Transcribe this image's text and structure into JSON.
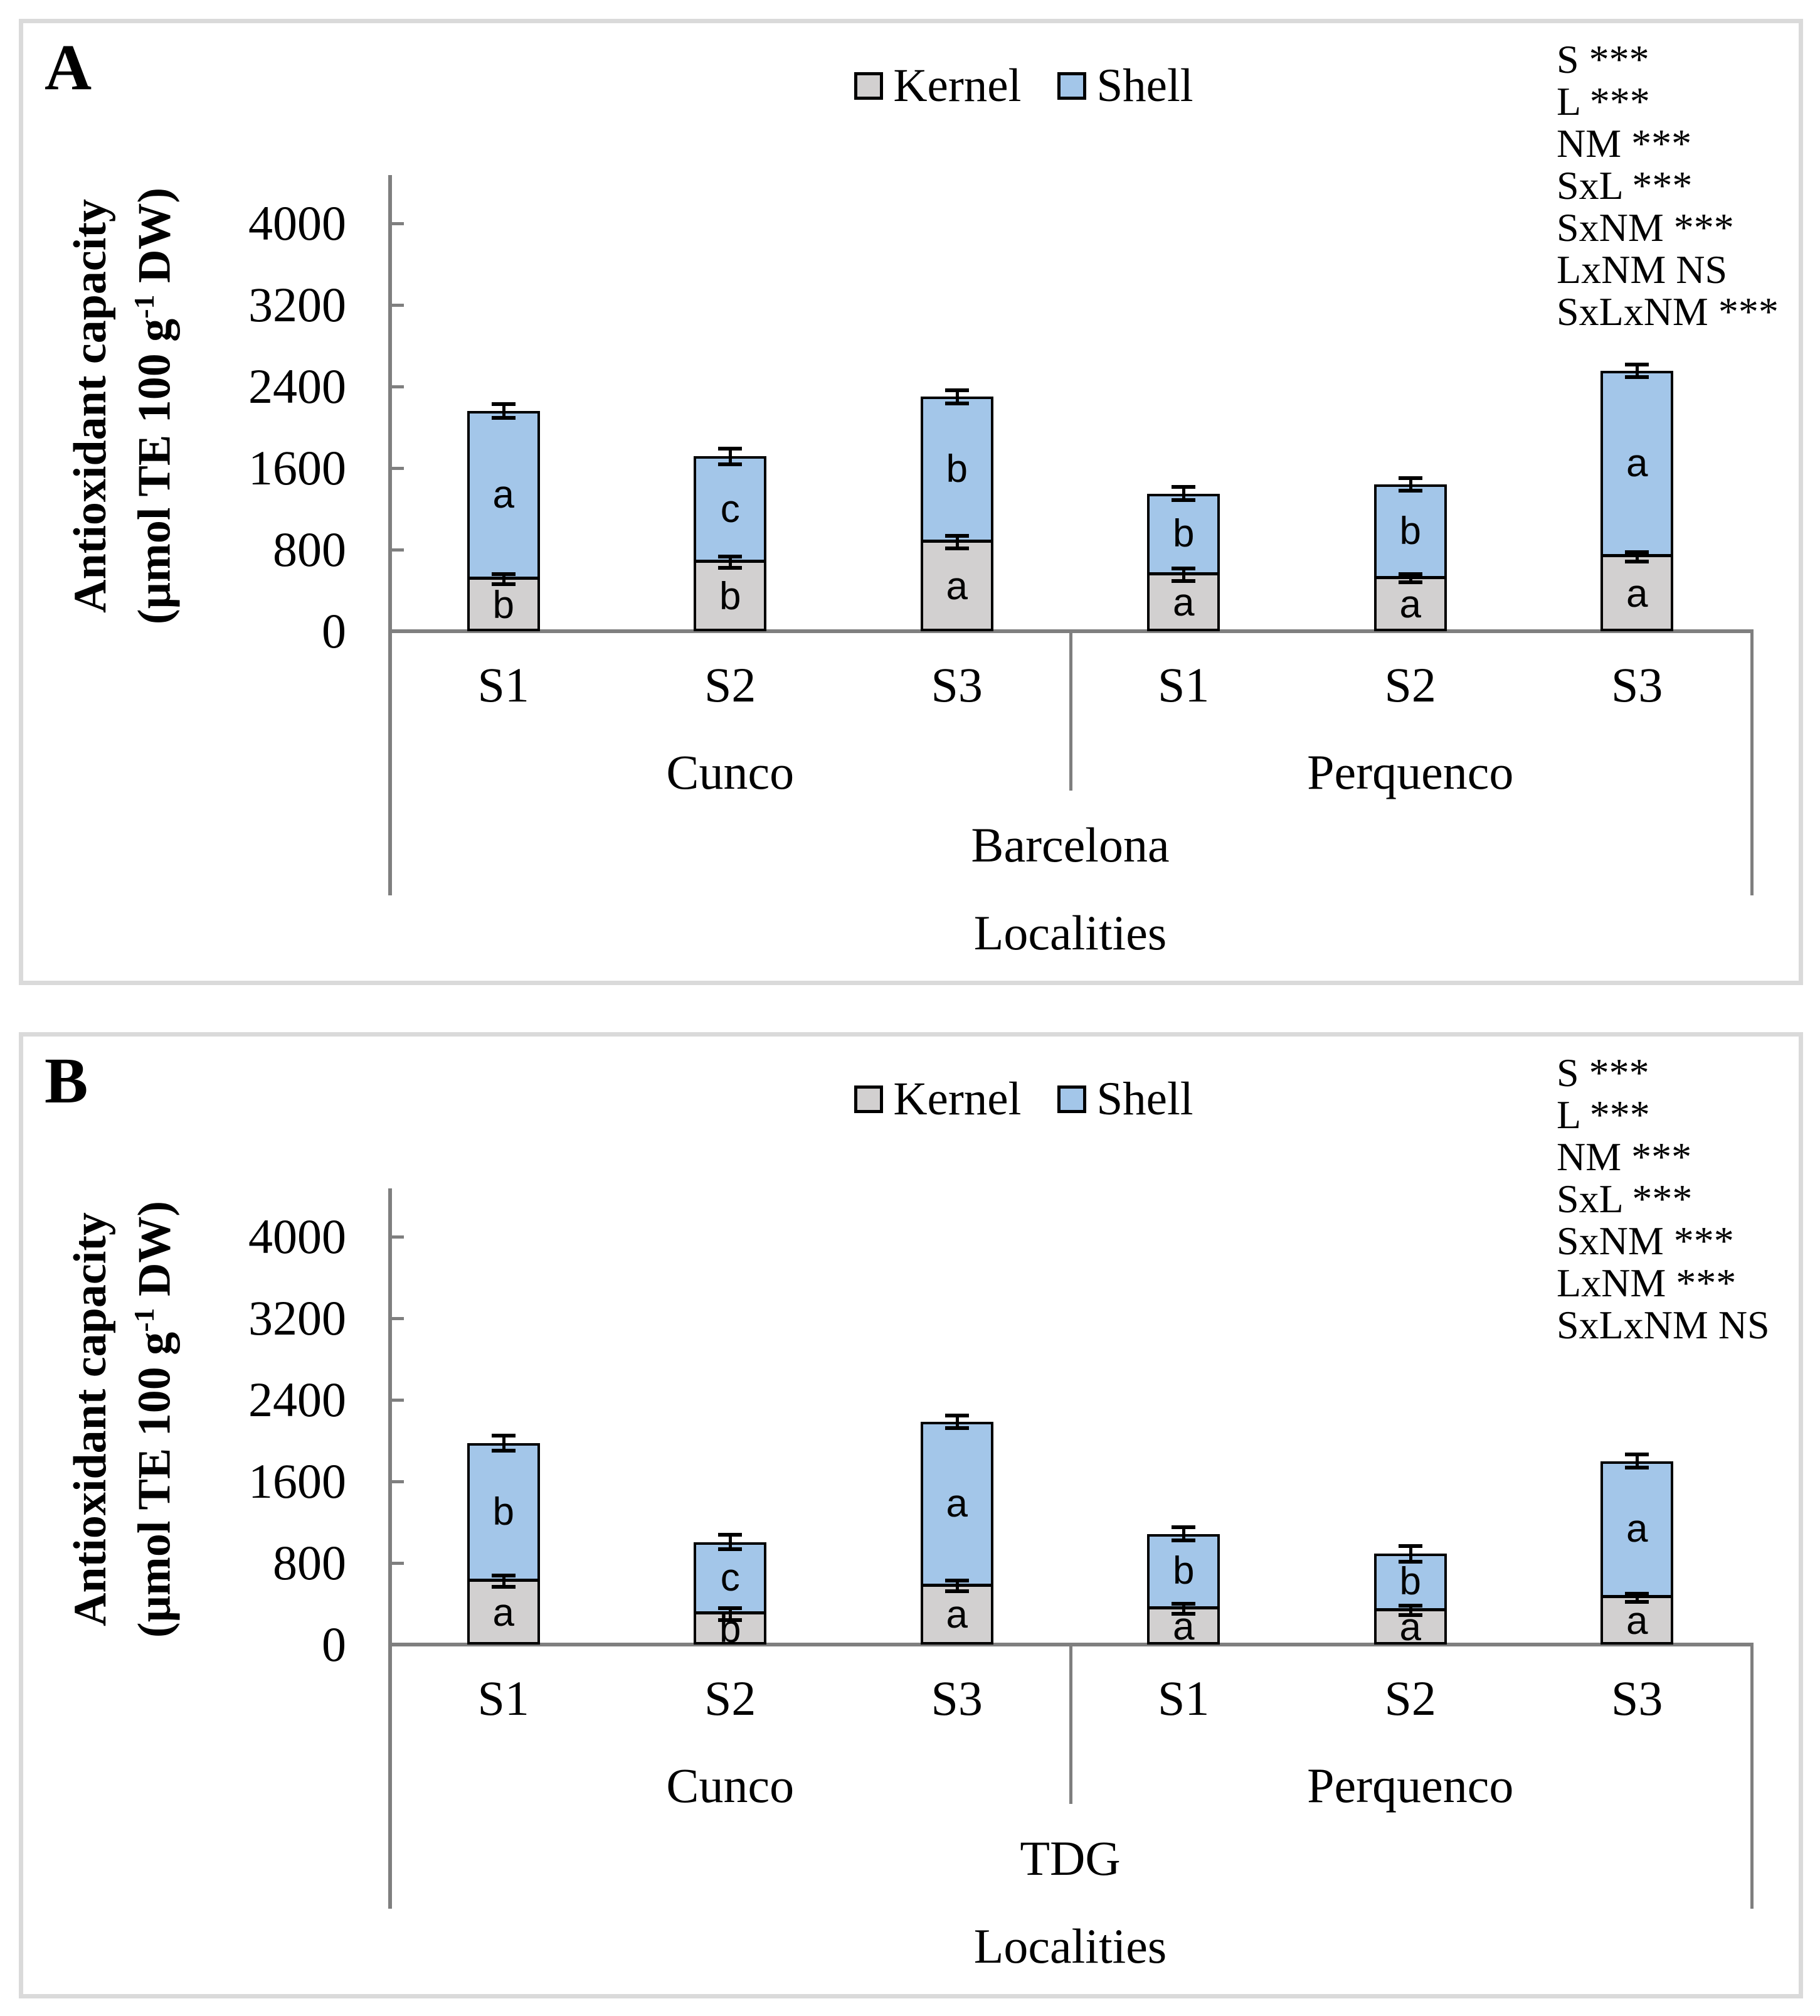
{
  "chart_data": [
    {
      "type": "bar",
      "stacked": true,
      "panel_label": "A",
      "legend": [
        "Kernel",
        "Shell"
      ],
      "colors": {
        "kernel": "#d2d0d0",
        "shell": "#a3c6e9",
        "axis": "#7f7f7f",
        "bar_border": "#000000",
        "panel_border": "#dadada"
      },
      "ylabel": {
        "line1": "Antioxidant capacity",
        "line2_pre": "(µmol TE 100 g",
        "line2_sup": "-1",
        "line2_post": " DW)"
      },
      "yticks": [
        0,
        800,
        1600,
        2400,
        3200,
        4000
      ],
      "ylim": [
        0,
        4470
      ],
      "grid": false,
      "legend_position": "top-center",
      "stats": [
        "S ***",
        "L ***",
        "NM ***",
        "SxL ***",
        "SxNM ***",
        "LxNM NS",
        "SxLxNM ***"
      ],
      "locality": "Barcelona",
      "xlabel": "Localities",
      "series_names": [
        "Kernel",
        "Shell"
      ],
      "groups": [
        {
          "name": "Cunco",
          "bars": [
            {
              "season": "S1",
              "kernel": 510,
              "kernel_err": 50,
              "kernel_letter": "b",
              "shell": 1650,
              "shell_letter": "a",
              "total": 2160,
              "total_err": 70
            },
            {
              "season": "S2",
              "kernel": 675,
              "kernel_err": 55,
              "kernel_letter": "b",
              "shell": 1040,
              "shell_letter": "c",
              "total": 1715,
              "total_err": 75
            },
            {
              "season": "S3",
              "kernel": 875,
              "kernel_err": 60,
              "kernel_letter": "a",
              "shell": 1425,
              "shell_letter": "b",
              "total": 2300,
              "total_err": 65
            }
          ]
        },
        {
          "name": "Perquenco",
          "bars": [
            {
              "season": "S1",
              "kernel": 555,
              "kernel_err": 60,
              "kernel_letter": "a",
              "shell": 795,
              "shell_letter": "b",
              "total": 1350,
              "total_err": 65
            },
            {
              "season": "S2",
              "kernel": 520,
              "kernel_err": 40,
              "kernel_letter": "a",
              "shell": 920,
              "shell_letter": "b",
              "total": 1440,
              "total_err": 60
            },
            {
              "season": "S3",
              "kernel": 730,
              "kernel_err": 45,
              "kernel_letter": "a",
              "shell": 1825,
              "shell_letter": "a",
              "total": 2555,
              "total_err": 60
            }
          ]
        }
      ]
    },
    {
      "type": "bar",
      "stacked": true,
      "panel_label": "B",
      "legend": [
        "Kernel",
        "Shell"
      ],
      "colors": {
        "kernel": "#d2d0d0",
        "shell": "#a3c6e9",
        "axis": "#7f7f7f",
        "bar_border": "#000000",
        "panel_border": "#dadada"
      },
      "ylabel": {
        "line1": "Antioxidant capacity",
        "line2_pre": "(µmol TE 100 g",
        "line2_sup": "-1",
        "line2_post": " DW)"
      },
      "yticks": [
        0,
        800,
        1600,
        2400,
        3200,
        4000
      ],
      "ylim": [
        0,
        4470
      ],
      "grid": false,
      "legend_position": "top-center",
      "stats": [
        "S ***",
        "L ***",
        "NM ***",
        "SxL ***",
        "SxNM ***",
        "LxNM ***",
        "SxLxNM NS"
      ],
      "locality": "TDG",
      "xlabel": "Localities",
      "series_names": [
        "Kernel",
        "Shell"
      ],
      "groups": [
        {
          "name": "Cunco",
          "bars": [
            {
              "season": "S1",
              "kernel": 620,
              "kernel_err": 55,
              "kernel_letter": "a",
              "shell": 1355,
              "shell_letter": "b",
              "total": 1975,
              "total_err": 75
            },
            {
              "season": "S2",
              "kernel": 300,
              "kernel_err": 60,
              "kernel_letter": "b",
              "shell": 705,
              "shell_letter": "c",
              "total": 1005,
              "total_err": 70
            },
            {
              "season": "S3",
              "kernel": 575,
              "kernel_err": 50,
              "kernel_letter": "a",
              "shell": 1610,
              "shell_letter": "a",
              "total": 2185,
              "total_err": 60
            }
          ]
        },
        {
          "name": "Perquenco",
          "bars": [
            {
              "season": "S1",
              "kernel": 350,
              "kernel_err": 50,
              "kernel_letter": "a",
              "shell": 735,
              "shell_letter": "b",
              "total": 1085,
              "total_err": 65
            },
            {
              "season": "S2",
              "kernel": 335,
              "kernel_err": 45,
              "kernel_letter": "a",
              "shell": 555,
              "shell_letter": "b",
              "total": 890,
              "total_err": 75
            },
            {
              "season": "S3",
              "kernel": 460,
              "kernel_err": 40,
              "kernel_letter": "a",
              "shell": 1340,
              "shell_letter": "a",
              "total": 1800,
              "total_err": 65
            }
          ]
        }
      ]
    }
  ]
}
